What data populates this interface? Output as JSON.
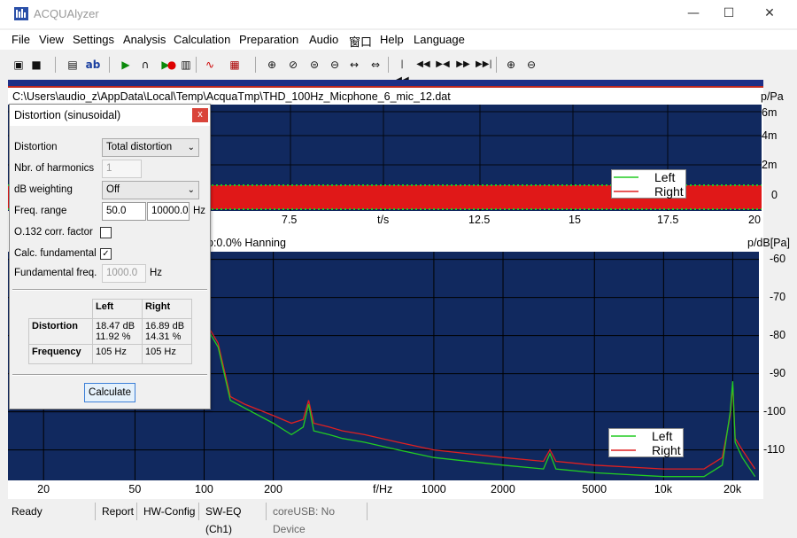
{
  "window": {
    "title": "ACQUAlyzer",
    "minimize": "—",
    "maximize": "☐",
    "close": "✕"
  },
  "menu": [
    "File",
    "View",
    "Settings",
    "Analysis",
    "Calculation",
    "Preparation",
    "Audio",
    "窗口",
    "Help",
    "Language"
  ],
  "toolbar": [
    {
      "name": "open-icon",
      "glyph": "📂"
    },
    {
      "name": "save-icon",
      "glyph": "💾"
    },
    {
      "name": "window-icon",
      "glyph": "▤"
    },
    {
      "name": "ab-icon",
      "glyph": "ab"
    },
    {
      "name": "play-icon",
      "glyph": "▶"
    },
    {
      "name": "headphone-icon",
      "glyph": "🎧"
    },
    {
      "name": "record-icon",
      "glyph": "●"
    },
    {
      "name": "clipboard-icon",
      "glyph": "📋"
    },
    {
      "name": "curve-icon",
      "glyph": "〰"
    },
    {
      "name": "abacus-icon",
      "glyph": "▦"
    },
    {
      "name": "zoom-in-icon",
      "glyph": "⊕"
    },
    {
      "name": "zoom-x-icon",
      "glyph": "⊘"
    },
    {
      "name": "zoom-y-icon",
      "glyph": "⊜"
    },
    {
      "name": "zoom-out-icon",
      "glyph": "⊖"
    },
    {
      "name": "fit-width-icon",
      "glyph": "↔"
    },
    {
      "name": "fit-all-icon",
      "glyph": "⇔"
    },
    {
      "name": "first-icon",
      "glyph": "⏮"
    },
    {
      "name": "prev-icon",
      "glyph": "◀◀"
    },
    {
      "name": "center-icon",
      "glyph": "⏸"
    },
    {
      "name": "next-icon",
      "glyph": "▶▶"
    },
    {
      "name": "last-icon",
      "glyph": "⏭"
    },
    {
      "name": "zoom-y-in-icon",
      "glyph": "🔍"
    },
    {
      "name": "zoom-y-out-icon",
      "glyph": "🔎"
    }
  ],
  "file_path": "C:\\Users\\audio_z\\AppData\\Local\\Temp\\AcquaTmp\\THD_100Hz_Micphone_6_mic_12.dat",
  "top_chart": {
    "unit": "p/Pa",
    "xlabel": "t/s",
    "x_ticks": [
      "7.5",
      "12.5",
      "15",
      "17.5",
      "20"
    ],
    "y_ticks": [
      "6m",
      "4m",
      "2m",
      "0"
    ],
    "legend": [
      "Left",
      "Right"
    ]
  },
  "bottom_chart": {
    "info": "p:0.0%  Hanning",
    "unit": "p/dB[Pa]",
    "xlabel": "f/Hz",
    "x_ticks": [
      "20",
      "50",
      "100",
      "200",
      "1000",
      "2000",
      "5000",
      "10k",
      "20k"
    ],
    "y_ticks": [
      "-60",
      "-70",
      "-80",
      "-90",
      "-100",
      "-110"
    ],
    "legend": [
      "Left",
      "Right"
    ]
  },
  "chart_data": {
    "type": "line",
    "title": "",
    "xlabel": "f/Hz",
    "ylabel": "p/dB[Pa]",
    "xscale": "log",
    "xlim": [
      14,
      26000
    ],
    "ylim": [
      -118,
      -58
    ],
    "series": [
      {
        "name": "Left",
        "x": [
          75,
          85,
          90,
          95,
          100,
          105,
          115,
          130,
          150,
          200,
          240,
          270,
          285,
          300,
          350,
          400,
          500,
          700,
          1000,
          2000,
          3000,
          3200,
          3400,
          5000,
          10000,
          15000,
          18000,
          19500,
          20000,
          20500,
          22000,
          25000
        ],
        "y": [
          -71,
          -68,
          -67.5,
          -68,
          -78,
          -79,
          -83,
          -97,
          -99,
          -103,
          -106,
          -104,
          -98,
          -105,
          -106,
          -107,
          -108,
          -110,
          -112,
          -114,
          -115,
          -111,
          -115,
          -116,
          -117,
          -117,
          -114,
          -100,
          -92,
          -108,
          -112,
          -117
        ]
      },
      {
        "name": "Right",
        "x": [
          75,
          85,
          90,
          95,
          100,
          105,
          115,
          130,
          150,
          200,
          240,
          270,
          285,
          300,
          350,
          400,
          500,
          700,
          1000,
          2000,
          3000,
          3200,
          3400,
          5000,
          10000,
          15000,
          18000,
          19500,
          20000,
          20500,
          22000,
          25000
        ],
        "y": [
          -70,
          -68,
          -67.5,
          -68,
          -77,
          -78,
          -82,
          -96,
          -98,
          -101,
          -103,
          -102,
          -97,
          -103,
          -104,
          -105,
          -106,
          -108,
          -110,
          -112,
          -113,
          -110,
          -113,
          -114,
          -115,
          -115,
          -112,
          -101,
          -93,
          -107,
          -110,
          -115
        ]
      }
    ],
    "grid": true,
    "legend_position": "bottom-right",
    "colors": {
      "Left": "#22cc22",
      "Right": "#e02020",
      "background": "#11295f",
      "grid": "#000000"
    }
  },
  "dialog": {
    "title": "Distortion (sinusoidal)",
    "close": "x",
    "distortion_label": "Distortion",
    "distortion_value": "Total distortion",
    "harmonics_label": "Nbr. of harmonics",
    "harmonics_value": "1",
    "weighting_label": "dB weighting",
    "weighting_value": "Off",
    "freq_range_label": "Freq. range",
    "freq_from": "50.0",
    "freq_to": "10000.0",
    "freq_unit": "Hz",
    "o132_label": "O.132 corr. factor",
    "o132_checked": false,
    "calc_fund_label": "Calc. fundamental",
    "calc_fund_checked": true,
    "fund_freq_label": "Fundamental freq.",
    "fund_freq_value": "1000.0",
    "fund_unit": "Hz",
    "results": {
      "col_left": "Left",
      "col_right": "Right",
      "row_distortion": "Distortion",
      "dist_left_db": "18.47 dB",
      "dist_left_pct": "11.92 %",
      "dist_right_db": "16.89 dB",
      "dist_right_pct": "14.31 %",
      "row_frequency": "Frequency",
      "freq_left": "105 Hz",
      "freq_right": "105 Hz"
    },
    "calculate_label": "Calculate"
  },
  "status": [
    "Ready",
    "Report",
    "HW-Config",
    "SW-EQ (Ch1)",
    "coreUSB: No Device"
  ]
}
